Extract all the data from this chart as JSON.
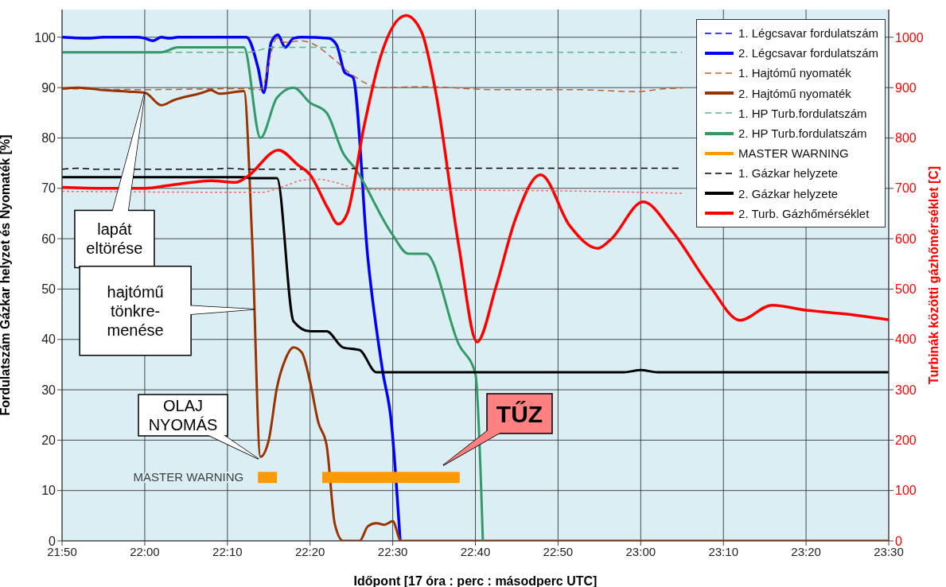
{
  "chart_data": {
    "type": "line",
    "xlabel": "Időpont [17 óra : perc : másodperc UTC]",
    "ylabel": "Fordulatszám Gázkar helyzet és Nyomaték [%]",
    "y2label": "Turbinák közötti gázhőmérséklet [C]",
    "xlim": [
      21.8333,
      23.5
    ],
    "xticks": [
      {
        "value": 21.8333,
        "label": "21:50"
      },
      {
        "value": 22,
        "label": "22:00"
      },
      {
        "value": 22.1667,
        "label": "22:10"
      },
      {
        "value": 22.3333,
        "label": "22:20"
      },
      {
        "value": 22.5,
        "label": "22:30"
      },
      {
        "value": 22.6667,
        "label": "22:40"
      },
      {
        "value": 22.8333,
        "label": "22:50"
      },
      {
        "value": 23,
        "label": "23:00"
      },
      {
        "value": 23.1667,
        "label": "23:10"
      },
      {
        "value": 23.3333,
        "label": "23:20"
      },
      {
        "value": 23.5,
        "label": "23:30"
      }
    ],
    "ylim": [
      0,
      105.5
    ],
    "yticks": [
      0,
      10,
      20,
      30,
      40,
      50,
      60,
      70,
      80,
      90,
      100
    ],
    "y2lim": [
      0,
      1055
    ],
    "y2ticks": [
      0,
      100,
      200,
      300,
      400,
      500,
      600,
      700,
      800,
      900,
      1000
    ],
    "grid": true,
    "legend": "top right",
    "series": [
      {
        "name": "1. Légcsavar fordulatszám",
        "color": "#0000ff",
        "line_style": "dashed"
      },
      {
        "name": "2. Légcsavar fordulatszám",
        "color": "#0000ff",
        "line_style": "solid",
        "x": [
          21.8333,
          21.8833,
          21.9167,
          21.9833,
          22.0,
          22.0167,
          22.0333,
          22.05,
          22.0667,
          22.205,
          22.2283,
          22.24,
          22.255,
          22.2683,
          22.2833,
          22.3,
          22.3167,
          22.37,
          22.3867,
          22.4033,
          22.42,
          22.45,
          22.48,
          22.4967,
          22.515
        ],
        "values": [
          100,
          99.8,
          100,
          100,
          99.8,
          99.3,
          100,
          99.8,
          100,
          100,
          94,
          89,
          99,
          100.5,
          98,
          99.8,
          100,
          99.8,
          98.5,
          93,
          92,
          56,
          33.5,
          24,
          0
        ]
      },
      {
        "name": "1. Hajtómű nyomaték",
        "color": "#c0602f",
        "line_style": "dashed",
        "x": [
          21.8333,
          22.0,
          22.2,
          22.2333,
          22.2667,
          22.2833,
          22.3167,
          22.3383,
          22.3817,
          22.4133,
          22.4783,
          22.5633,
          22.7,
          22.8667,
          22.9933,
          23.05,
          23.0833
        ],
        "values": [
          89.8,
          89.6,
          89.8,
          89.6,
          99.8,
          99,
          99.3,
          98.7,
          95.6,
          92.9,
          90,
          90.2,
          89.6,
          89.6,
          89.2,
          89.8,
          89.9
        ]
      },
      {
        "name": "2. Hajtómű nyomaték",
        "color": "#993300",
        "line_style": "solid",
        "x": [
          21.8333,
          21.8667,
          21.9167,
          21.9667,
          22.0,
          22.0333,
          22.0583,
          22.1167,
          22.1333,
          22.15,
          22.2,
          22.2167,
          22.2333,
          22.25,
          22.2667,
          22.2833,
          22.3,
          22.3167,
          22.3333,
          22.35,
          22.3667,
          22.3833,
          22.4,
          22.4333,
          22.45,
          22.4667,
          22.4833,
          22.5,
          22.5167,
          23.5
        ],
        "values": [
          89.8,
          90,
          89.5,
          89.2,
          89,
          86.5,
          87.5,
          89,
          89.5,
          88.8,
          89.3,
          59.5,
          16.7,
          20,
          30.5,
          36,
          38.4,
          37.4,
          31.6,
          23.5,
          19,
          3.3,
          0,
          0,
          2.9,
          3.5,
          3.2,
          3.9,
          0,
          0
        ]
      },
      {
        "name": "1. HP Turb.fordulatszám",
        "color": "#5fb38a",
        "line_style": "dashed",
        "x": [
          21.8333,
          22.2083,
          22.2583,
          22.3833,
          22.4083,
          23.0833
        ],
        "values": [
          97,
          97,
          98,
          98,
          97,
          97
        ]
      },
      {
        "name": "2. HP Turb.fordulatszám",
        "color": "#339966",
        "line_style": "solid",
        "x": [
          21.8333,
          22.0333,
          22.0667,
          22.2,
          22.2333,
          22.2667,
          22.3,
          22.3333,
          22.3667,
          22.4,
          22.425,
          22.4983,
          22.5317,
          22.5667,
          22.6333,
          22.6667,
          22.6817
        ],
        "values": [
          97,
          97,
          98,
          98,
          80,
          88,
          90,
          87,
          85,
          77,
          73.8,
          61,
          57,
          57,
          39,
          33.2,
          0
        ]
      },
      {
        "name": "MASTER WARNING",
        "color": "#ff9900",
        "line_style": "solid",
        "x": [
          22.2283,
          22.2667,
          22.3,
          22.3578,
          22.635
        ],
        "values": [
          12.6,
          12.6,
          null,
          12.6,
          12.6
        ]
      },
      {
        "name": "1. Gázkar helyzete",
        "color": "#000000",
        "line_style": "dashed",
        "x": [
          21.8333,
          21.8667,
          21.9,
          22.1333,
          22.1667,
          22.2,
          22.4,
          22.4333,
          23.0767
        ],
        "values": [
          73.8,
          74,
          73.8,
          73.8,
          74,
          73.8,
          73.8,
          74,
          74
        ]
      },
      {
        "name": "2. Gázkar helyzete",
        "color": "#000000",
        "line_style": "solid",
        "x": [
          21.8333,
          22.2,
          22.2167,
          22.2667,
          22.3,
          22.3333,
          22.3667,
          22.4,
          22.4333,
          22.4667,
          22.9667,
          23.0,
          23.0333,
          23.5
        ],
        "values": [
          72.2,
          72.2,
          72,
          72,
          43.6,
          41.6,
          41.6,
          38.4,
          37.9,
          33.5,
          33.5,
          33.9,
          33.5,
          33.5
        ]
      },
      {
        "name": "2. Turb. Gázhőmérséklet",
        "color": "#ff0000",
        "line_style": "solid",
        "axis": "y2",
        "x": [
          21.8333,
          21.9167,
          22.0,
          22.05,
          22.1333,
          22.1833,
          22.205,
          22.27,
          22.3083,
          22.3333,
          22.37,
          22.39,
          22.4083,
          22.4417,
          22.475,
          22.5267,
          22.5583,
          22.585,
          22.6333,
          22.67,
          22.7083,
          22.7467,
          22.7983,
          22.8567,
          22.9133,
          22.9383,
          23.005,
          23.0633,
          23.14,
          23.2,
          23.265,
          23.3333,
          23.4167,
          23.5
        ],
        "values": [
          702,
          700,
          700,
          706,
          715,
          712,
          722,
          776,
          747,
          727,
          659,
          629,
          650,
          821,
          960,
          1043,
          1010,
          900,
          585,
          395,
          505,
          637,
          727,
          626,
          581,
          597,
          673,
          615,
          505,
          438,
          468,
          458,
          450,
          439
        ]
      },
      {
        "color": "#ff6666",
        "line_style": "dotted",
        "axis": "y2",
        "x": [
          21.8333,
          22.2333,
          22.2833,
          22.3167,
          22.35,
          22.3833,
          22.4333,
          22.5,
          22.8333,
          23.0833
        ],
        "values": [
          694,
          692,
          705,
          716,
          718,
          712,
          699,
          697,
          695,
          690
        ]
      }
    ],
    "annotations": [
      {
        "text": "lapát\neltörése",
        "x": 22.0,
        "y": 89
      },
      {
        "text": "hajtómű\ntönkre-\nmenése",
        "x": 22.2217,
        "y": 46
      },
      "OLAJ\nNYOMÁS",
      "TŰZ",
      {
        "text": "MASTER WARNING",
        "x": 22.2283,
        "y": 12.6
      }
    ]
  }
}
